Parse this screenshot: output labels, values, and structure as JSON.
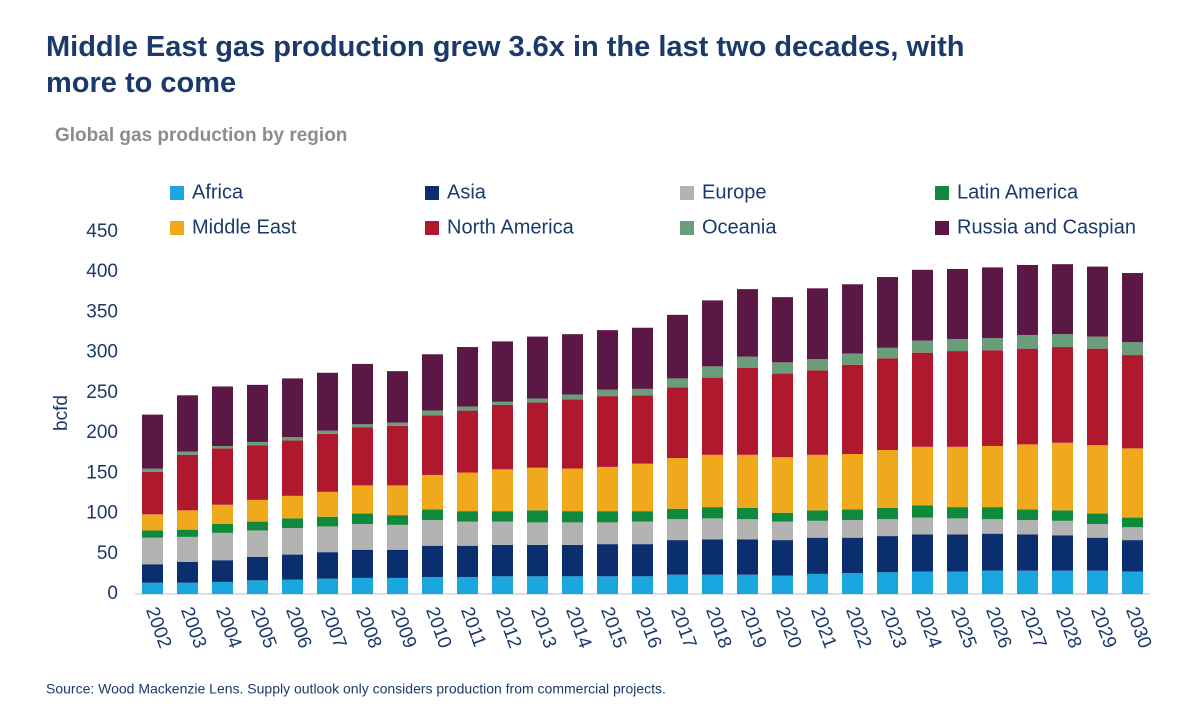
{
  "chart_data": {
    "type": "stacked_bar",
    "title": "Middle East gas production grew 3.6x in the last two decades, with more to come",
    "subtitle": "Global gas production by region",
    "y_label": "bcfd",
    "source": "Source: Wood Mackenzie Lens. Supply outlook only considers production from commercial projects.",
    "categories": [
      "2002",
      "2003",
      "2004",
      "2005",
      "2006",
      "2007",
      "2008",
      "2009",
      "2010",
      "2011",
      "2012",
      "2013",
      "2014",
      "2015",
      "2016",
      "2017",
      "2018",
      "2019",
      "2020",
      "2021",
      "2022",
      "2023",
      "2024",
      "2025",
      "2026",
      "2027",
      "2028",
      "2029",
      "2030"
    ],
    "ylim": [
      0,
      450
    ],
    "yticks": [
      0,
      50,
      100,
      150,
      200,
      250,
      300,
      350,
      400,
      450
    ],
    "series": [
      {
        "name": "Africa",
        "color": "#1aa7e0",
        "values": [
          14,
          14,
          15,
          17,
          18,
          19,
          20,
          20,
          21,
          21,
          22,
          22,
          22,
          22,
          22,
          24,
          24,
          24,
          23,
          25,
          26,
          27,
          28,
          28,
          29,
          29,
          29,
          29,
          28
        ]
      },
      {
        "name": "Asia",
        "color": "#0b2e6e",
        "values": [
          23,
          26,
          27,
          29,
          31,
          33,
          35,
          35,
          39,
          39,
          39,
          39,
          39,
          40,
          40,
          43,
          44,
          44,
          44,
          45,
          44,
          45,
          46,
          46,
          46,
          45,
          44,
          41,
          39
        ]
      },
      {
        "name": "Europe",
        "color": "#b3b3b3",
        "values": [
          33,
          31,
          34,
          33,
          33,
          32,
          32,
          31,
          32,
          30,
          29,
          28,
          28,
          27,
          28,
          26,
          26,
          25,
          23,
          21,
          22,
          21,
          21,
          20,
          18,
          18,
          18,
          17,
          16
        ]
      },
      {
        "name": "Latin America",
        "color": "#0f8a3c",
        "values": [
          9,
          9,
          11,
          11,
          12,
          12,
          13,
          12,
          13,
          13,
          13,
          15,
          14,
          14,
          13,
          13,
          14,
          14,
          11,
          13,
          13,
          14,
          15,
          14,
          15,
          13,
          13,
          13,
          12
        ]
      },
      {
        "name": "Middle East",
        "color": "#f0a81c",
        "values": [
          20,
          24,
          24,
          27,
          28,
          31,
          35,
          37,
          43,
          48,
          52,
          53,
          53,
          55,
          59,
          63,
          65,
          66,
          69,
          69,
          69,
          72,
          73,
          75,
          76,
          81,
          84,
          85,
          86
        ]
      },
      {
        "name": "North America",
        "color": "#b0182e",
        "values": [
          53,
          69,
          70,
          68,
          69,
          72,
          72,
          74,
          74,
          77,
          80,
          81,
          86,
          88,
          85,
          88,
          96,
          108,
          104,
          105,
          111,
          114,
          117,
          119,
          119,
          119,
          119,
          120,
          116
        ]
      },
      {
        "name": "Oceania",
        "color": "#6a9e7a",
        "values": [
          4,
          4,
          3,
          4,
          4,
          4,
          4,
          4,
          6,
          5,
          4,
          5,
          6,
          8,
          8,
          11,
          14,
          14,
          14,
          14,
          14,
          13,
          15,
          15,
          15,
          17,
          16,
          15,
          16
        ]
      },
      {
        "name": "Russia and Caspian",
        "color": "#5c1845",
        "values": [
          67,
          70,
          74,
          71,
          73,
          72,
          75,
          64,
          70,
          74,
          75,
          77,
          75,
          74,
          76,
          79,
          82,
          84,
          81,
          88,
          86,
          88,
          88,
          87,
          88,
          87,
          87,
          87,
          86
        ]
      }
    ]
  }
}
